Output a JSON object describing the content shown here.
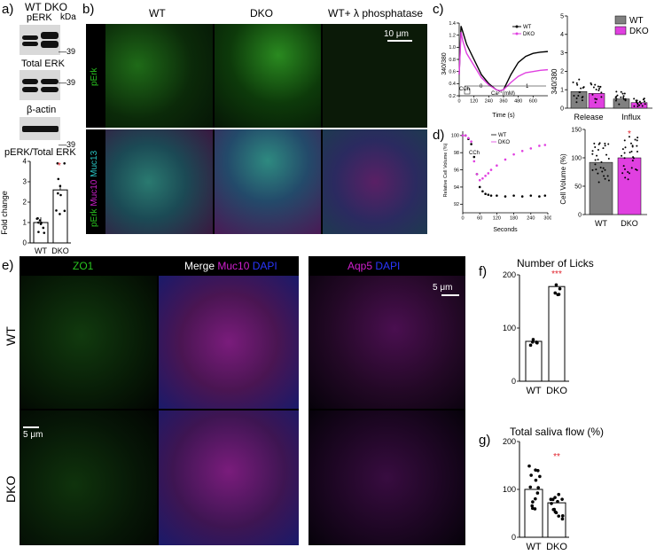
{
  "panel_a": {
    "label": "a)",
    "col_wt": "WT",
    "col_dko": "DKO",
    "kda": "kDa",
    "blots": [
      {
        "title": "pERK",
        "marker": "39"
      },
      {
        "title": "Total ERK",
        "marker": "39"
      },
      {
        "title": "β-actin",
        "marker": "39"
      }
    ],
    "sig": "*",
    "chart_title": "pERK/Total ERK",
    "ylabel": "Fold change",
    "yticks": [
      "0",
      "1",
      "2",
      "3",
      "4"
    ],
    "categories": [
      "WT",
      "DKO"
    ]
  },
  "panel_b": {
    "label": "b)",
    "cols": [
      "WT",
      "DKO",
      "WT+ λ phosphatase"
    ],
    "row1_label": "pErk",
    "row2_label_parts": [
      "pErk",
      "Muc10",
      "Muc13"
    ],
    "scalebar": "10 μm"
  },
  "panel_c": {
    "label": "c)",
    "ylabel": "340/380",
    "yticks": [
      "0.2",
      "0.4",
      "0.6",
      "0.8",
      "1.0",
      "1.2",
      "1.4"
    ],
    "xlabel": "Time (s)",
    "xticks": [
      "0",
      "120",
      "240",
      "360",
      "480",
      "600"
    ],
    "legend": [
      "WT",
      "DKO"
    ],
    "cch": "CCh",
    "ca_label": "Ca²⁺(mM)",
    "ca_values": [
      "0",
      "1"
    ],
    "bar_yticks": [
      "0",
      "1",
      "2",
      "3",
      "4",
      "5"
    ],
    "bar_ylabel": "340/380",
    "bar_categories": [
      "Release",
      "Influx"
    ],
    "bar_legend": [
      "WT",
      "DKO"
    ]
  },
  "panel_d": {
    "label": "d)",
    "ylabel": "Relative Cell Volume (%)",
    "yticks": [
      "92",
      "94",
      "96",
      "98",
      "100"
    ],
    "xlabel": "Seconds",
    "xticks": [
      "0",
      "60",
      "120",
      "180",
      "240",
      "300"
    ],
    "legend": [
      "WT",
      "DKO"
    ],
    "cch": "CCh",
    "bar_ylabel": "Cell Volume (%)",
    "bar_yticks": [
      "0",
      "50",
      "100",
      "150"
    ],
    "bar_categories": [
      "WT",
      "DKO"
    ],
    "sig": "*"
  },
  "panel_e": {
    "label": "e)",
    "headers": {
      "zo1": "ZO1",
      "merge": "Merge",
      "muc10": "Muc10",
      "dapi": "DAPI",
      "aqp5": "Aqp5",
      "dapi2": "DAPI"
    },
    "rows": [
      "WT",
      "DKO"
    ],
    "scalebar1": "5 μm",
    "scalebar2": "5 μm"
  },
  "panel_f": {
    "label": "f)",
    "title": "Number of Licks",
    "yticks": [
      "0",
      "100",
      "200"
    ],
    "categories": [
      "WT",
      "DKO"
    ],
    "sig": "***"
  },
  "panel_g": {
    "label": "g)",
    "title": "Total saliva flow (%)",
    "yticks": [
      "0",
      "100",
      "200"
    ],
    "categories": [
      "WT",
      "DKO"
    ],
    "sig": "**"
  },
  "colors": {
    "wt_bar": "#808080",
    "dko_bar": "#e040e0",
    "green": "#29c41f",
    "magenta": "#d01fcf",
    "cyan": "#29c7c7",
    "blue": "#2a36ff",
    "sig_red": "#e0202a"
  },
  "chart_data": [
    {
      "type": "bar",
      "title": "pERK/Total ERK",
      "ylabel": "Fold change",
      "categories": [
        "WT",
        "DKO"
      ],
      "values": [
        1.0,
        2.6
      ],
      "ylim": [
        0,
        4
      ]
    },
    {
      "type": "line",
      "ylabel": "340/380",
      "xlabel": "Time (s)",
      "xlim": [
        0,
        720
      ],
      "ylim": [
        0.2,
        1.4
      ],
      "series": [
        {
          "name": "WT",
          "x": [
            0,
            15,
            30,
            60,
            120,
            180,
            240,
            300,
            330,
            360,
            420,
            480,
            540,
            600,
            660,
            720
          ],
          "values": [
            0.55,
            1.35,
            1.25,
            1.05,
            0.8,
            0.55,
            0.4,
            0.3,
            0.28,
            0.3,
            0.55,
            0.75,
            0.85,
            0.9,
            0.92,
            0.93
          ]
        },
        {
          "name": "DKO",
          "x": [
            0,
            15,
            30,
            60,
            120,
            180,
            240,
            300,
            330,
            360,
            420,
            480,
            540,
            600,
            660,
            720
          ],
          "values": [
            0.55,
            1.25,
            1.1,
            0.9,
            0.7,
            0.5,
            0.38,
            0.3,
            0.28,
            0.3,
            0.42,
            0.52,
            0.58,
            0.6,
            0.62,
            0.63
          ]
        }
      ]
    },
    {
      "type": "bar",
      "ylabel": "340/380",
      "categories": [
        "Release",
        "Influx"
      ],
      "ylim": [
        0,
        5
      ],
      "series": [
        {
          "name": "WT",
          "values": [
            0.9,
            0.5
          ]
        },
        {
          "name": "DKO",
          "values": [
            0.8,
            0.3
          ]
        }
      ]
    },
    {
      "type": "scatter",
      "ylabel": "Relative Cell Volume (%)",
      "xlabel": "Seconds",
      "xlim": [
        0,
        300
      ],
      "ylim": [
        91,
        100.5
      ],
      "series": [
        {
          "name": "WT",
          "x": [
            0,
            10,
            20,
            30,
            40,
            50,
            60,
            70,
            80,
            90,
            100,
            120,
            150,
            180,
            210,
            240,
            270,
            290
          ],
          "values": [
            100,
            100,
            99.6,
            99,
            97.5,
            95.5,
            94,
            93.5,
            93.2,
            93.1,
            93,
            93,
            92.9,
            93,
            92.9,
            93,
            92.9,
            93
          ]
        },
        {
          "name": "DKO",
          "x": [
            0,
            10,
            20,
            30,
            40,
            50,
            60,
            70,
            80,
            90,
            100,
            120,
            150,
            180,
            210,
            240,
            270,
            290
          ],
          "values": [
            100,
            100,
            99.7,
            99.3,
            97,
            95.5,
            94.8,
            95,
            95.3,
            95.6,
            96,
            96.5,
            97.2,
            97.8,
            98.2,
            98.5,
            98.8,
            98.9
          ]
        }
      ]
    },
    {
      "type": "bar",
      "ylabel": "Cell Volume (%)",
      "categories": [
        "WT",
        "DKO"
      ],
      "values": [
        92,
        100
      ],
      "ylim": [
        0,
        150
      ]
    },
    {
      "type": "bar",
      "title": "Number of Licks",
      "categories": [
        "WT",
        "DKO"
      ],
      "values": [
        75,
        178
      ],
      "ylim": [
        0,
        200
      ]
    },
    {
      "type": "bar",
      "title": "Total saliva flow (%)",
      "categories": [
        "WT",
        "DKO"
      ],
      "values": [
        100,
        72
      ],
      "ylim": [
        0,
        200
      ]
    }
  ]
}
